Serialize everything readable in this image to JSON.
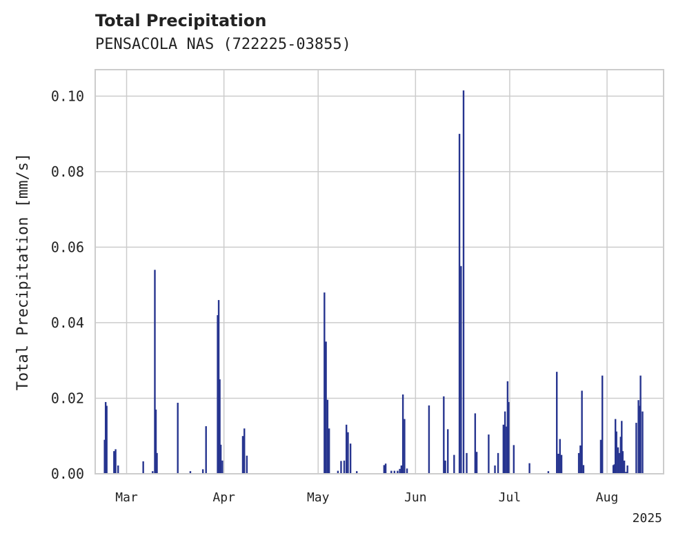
{
  "chart_data": {
    "type": "bar",
    "title": "Total Precipitation",
    "subtitle": "PENSACOLA NAS (722225-03855)",
    "xlabel": "",
    "ylabel": "Total Precipitation [mm/s]",
    "year_label": "2025",
    "xlim": [
      "2025-02-19",
      "2025-08-19"
    ],
    "ylim": [
      0,
      0.107
    ],
    "yticks": [
      "0.00",
      "0.02",
      "0.04",
      "0.06",
      "0.08",
      "0.10"
    ],
    "xticks": [
      {
        "date": "2025-03-01",
        "label": "Mar"
      },
      {
        "date": "2025-04-01",
        "label": "Apr"
      },
      {
        "date": "2025-05-01",
        "label": "May"
      },
      {
        "date": "2025-06-01",
        "label": "Jun"
      },
      {
        "date": "2025-07-01",
        "label": "Jul"
      },
      {
        "date": "2025-08-01",
        "label": "Aug"
      }
    ],
    "grid": true,
    "color": "#26348f",
    "x": [
      "2025-02-22",
      "2025-02-22",
      "2025-02-22",
      "2025-02-25",
      "2025-02-25",
      "2025-02-26",
      "2025-03-06",
      "2025-03-09",
      "2025-03-10",
      "2025-03-10",
      "2025-03-10",
      "2025-03-17",
      "2025-03-21",
      "2025-03-25",
      "2025-03-26",
      "2025-03-30",
      "2025-03-30",
      "2025-03-30",
      "2025-03-31",
      "2025-03-31",
      "2025-04-07",
      "2025-04-07",
      "2025-04-08",
      "2025-05-03",
      "2025-05-03",
      "2025-05-04",
      "2025-05-04",
      "2025-05-07",
      "2025-05-08",
      "2025-05-09",
      "2025-05-10",
      "2025-05-10",
      "2025-05-11",
      "2025-05-13",
      "2025-05-22",
      "2025-05-22",
      "2025-05-24",
      "2025-05-25",
      "2025-05-26",
      "2025-05-27",
      "2025-05-27",
      "2025-05-28",
      "2025-05-28",
      "2025-05-29",
      "2025-06-05",
      "2025-06-10",
      "2025-06-10",
      "2025-06-11",
      "2025-06-13",
      "2025-06-15",
      "2025-06-15",
      "2025-06-16",
      "2025-06-17",
      "2025-06-20",
      "2025-06-20",
      "2025-06-24",
      "2025-06-26",
      "2025-06-27",
      "2025-06-29",
      "2025-06-29",
      "2025-06-30",
      "2025-06-30",
      "2025-06-30",
      "2025-07-02",
      "2025-07-07",
      "2025-07-13",
      "2025-07-16",
      "2025-07-16",
      "2025-07-17",
      "2025-07-17",
      "2025-07-23",
      "2025-07-23",
      "2025-07-24",
      "2025-07-24",
      "2025-07-30",
      "2025-07-30",
      "2025-08-03",
      "2025-08-03",
      "2025-08-03",
      "2025-08-04",
      "2025-08-04",
      "2025-08-05",
      "2025-08-05",
      "2025-08-05",
      "2025-08-06",
      "2025-08-06",
      "2025-08-07",
      "2025-08-07",
      "2025-08-10",
      "2025-08-11",
      "2025-08-11",
      "2025-08-11",
      "2025-08-12"
    ],
    "values": [
      0.009,
      0.019,
      0.018,
      0.006,
      0.0065,
      0.0022,
      0.0033,
      0.0007,
      0.054,
      0.017,
      0.0055,
      0.0188,
      0.0007,
      0.0012,
      0.0126,
      0.042,
      0.046,
      0.025,
      0.0077,
      0.0035,
      0.01,
      0.012,
      0.0048,
      0.048,
      0.035,
      0.0196,
      0.012,
      0.0008,
      0.0034,
      0.0035,
      0.013,
      0.011,
      0.008,
      0.0007,
      0.0023,
      0.0027,
      0.0008,
      0.0008,
      0.0008,
      0.0013,
      0.0022,
      0.021,
      0.0145,
      0.0014,
      0.0181,
      0.0205,
      0.0035,
      0.0118,
      0.005,
      0.09,
      0.055,
      0.1015,
      0.0055,
      0.016,
      0.0058,
      0.0104,
      0.0022,
      0.0055,
      0.013,
      0.0165,
      0.0125,
      0.0245,
      0.019,
      0.0076,
      0.0028,
      0.0007,
      0.027,
      0.0053,
      0.0092,
      0.005,
      0.0055,
      0.0075,
      0.022,
      0.0023,
      0.009,
      0.026,
      0.0023,
      0.0025,
      0.0145,
      0.0112,
      0.007,
      0.0055,
      0.0098,
      0.014,
      0.006,
      0.0035,
      0.0005,
      0.0022,
      0.0135,
      0.0195,
      0.018,
      0.026,
      0.0165
    ]
  }
}
